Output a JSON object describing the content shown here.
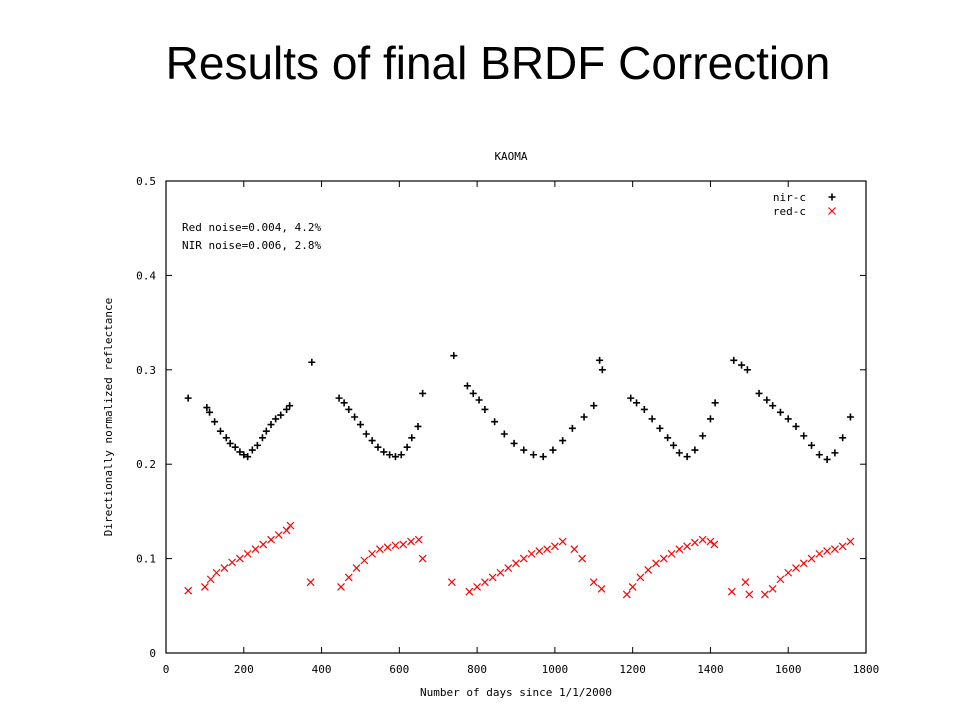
{
  "slide": {
    "title": "Results of final BRDF Correction"
  },
  "chart_data": {
    "type": "scatter",
    "title": "KAOMA",
    "xlabel": "Number of days since 1/1/2000",
    "ylabel": "Directionally normalized reflectance",
    "xlim": [
      0,
      1800
    ],
    "ylim": [
      0,
      0.5
    ],
    "x_ticks": [
      0,
      200,
      400,
      600,
      800,
      1000,
      1200,
      1400,
      1600,
      1800
    ],
    "y_ticks": [
      0,
      0.1,
      0.2,
      0.3,
      0.4,
      0.5
    ],
    "x_tick_labels": [
      "0",
      "200",
      "400",
      "600",
      "800",
      "1000",
      "1200",
      "1400",
      "1600",
      "1800"
    ],
    "y_tick_labels": [
      "0",
      "0.1",
      "0.2",
      "0.3",
      "0.4",
      "0.5"
    ],
    "grid": false,
    "legend_position": "top-right",
    "annotations": [
      "Red noise=0.004, 4.2%",
      "NIR noise=0.006, 2.8%"
    ],
    "colors": {
      "nir": "#000000",
      "red": "#ff0000"
    },
    "series": [
      {
        "name": "nir-c",
        "marker": "plus",
        "x": [
          57,
          105,
          112,
          125,
          140,
          155,
          165,
          178,
          190,
          200,
          210,
          222,
          235,
          248,
          258,
          270,
          282,
          295,
          310,
          318,
          375,
          445,
          458,
          470,
          485,
          500,
          515,
          530,
          545,
          560,
          575,
          590,
          605,
          620,
          632,
          648,
          660,
          740,
          775,
          790,
          805,
          820,
          845,
          870,
          895,
          920,
          945,
          970,
          995,
          1020,
          1045,
          1075,
          1100,
          1115,
          1122,
          1195,
          1210,
          1230,
          1250,
          1270,
          1290,
          1305,
          1320,
          1340,
          1360,
          1380,
          1400,
          1412,
          1460,
          1480,
          1495,
          1525,
          1545,
          1560,
          1580,
          1600,
          1620,
          1640,
          1660,
          1680,
          1700,
          1720,
          1740,
          1760
        ],
        "y": [
          0.27,
          0.26,
          0.255,
          0.245,
          0.235,
          0.228,
          0.222,
          0.218,
          0.213,
          0.21,
          0.208,
          0.215,
          0.22,
          0.228,
          0.235,
          0.242,
          0.248,
          0.252,
          0.258,
          0.262,
          0.308,
          0.27,
          0.265,
          0.258,
          0.25,
          0.242,
          0.232,
          0.225,
          0.218,
          0.213,
          0.21,
          0.208,
          0.21,
          0.218,
          0.228,
          0.24,
          0.275,
          0.315,
          0.283,
          0.275,
          0.268,
          0.258,
          0.245,
          0.232,
          0.222,
          0.215,
          0.21,
          0.208,
          0.215,
          0.225,
          0.238,
          0.25,
          0.262,
          0.31,
          0.3,
          0.27,
          0.265,
          0.258,
          0.248,
          0.238,
          0.228,
          0.22,
          0.212,
          0.208,
          0.215,
          0.23,
          0.248,
          0.265,
          0.31,
          0.305,
          0.3,
          0.275,
          0.268,
          0.262,
          0.255,
          0.248,
          0.24,
          0.23,
          0.22,
          0.21,
          0.205,
          0.212,
          0.228,
          0.25
        ]
      },
      {
        "name": "red-c",
        "marker": "cross",
        "x": [
          57,
          100,
          115,
          130,
          150,
          170,
          190,
          210,
          230,
          250,
          270,
          290,
          310,
          320,
          372,
          450,
          470,
          490,
          510,
          530,
          550,
          570,
          590,
          610,
          630,
          650,
          660,
          735,
          780,
          800,
          820,
          840,
          860,
          880,
          900,
          920,
          940,
          960,
          980,
          1000,
          1020,
          1050,
          1070,
          1100,
          1120,
          1185,
          1200,
          1220,
          1240,
          1260,
          1280,
          1300,
          1320,
          1340,
          1360,
          1380,
          1400,
          1410,
          1455,
          1490,
          1500,
          1540,
          1560,
          1580,
          1600,
          1620,
          1640,
          1660,
          1680,
          1700,
          1720,
          1740,
          1760
        ],
        "y": [
          0.066,
          0.07,
          0.078,
          0.085,
          0.09,
          0.096,
          0.1,
          0.105,
          0.11,
          0.115,
          0.12,
          0.125,
          0.13,
          0.135,
          0.075,
          0.07,
          0.08,
          0.09,
          0.098,
          0.105,
          0.11,
          0.112,
          0.114,
          0.115,
          0.118,
          0.12,
          0.1,
          0.075,
          0.065,
          0.07,
          0.075,
          0.08,
          0.085,
          0.09,
          0.095,
          0.1,
          0.105,
          0.108,
          0.11,
          0.113,
          0.118,
          0.11,
          0.1,
          0.075,
          0.068,
          0.062,
          0.07,
          0.08,
          0.088,
          0.095,
          0.1,
          0.105,
          0.11,
          0.113,
          0.117,
          0.12,
          0.118,
          0.115,
          0.065,
          0.075,
          0.062,
          0.062,
          0.068,
          0.078,
          0.085,
          0.09,
          0.095,
          0.1,
          0.105,
          0.108,
          0.11,
          0.113,
          0.118
        ]
      }
    ]
  }
}
